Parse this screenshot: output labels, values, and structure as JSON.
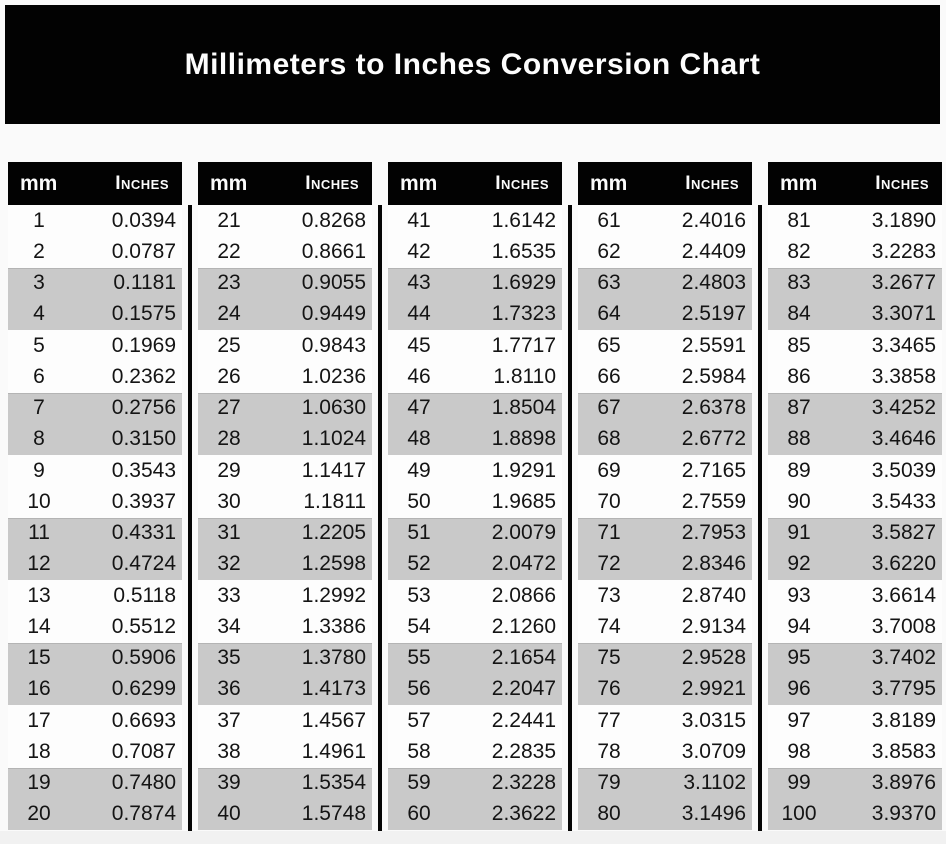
{
  "title": "Millimeters to Inches Conversion Chart",
  "chart_data": {
    "type": "table",
    "title": "Millimeters to Inches Conversion Chart",
    "columns": [
      "mm",
      "Inches"
    ],
    "layout": "five side-by-side two-column tables, rows shaded in alternating pairs (white pair / gray pair)",
    "stripe_color": "#c9c9c9",
    "header_bg": "#000000",
    "header_text_color": "#ffffff",
    "tables": [
      {
        "rows": [
          [
            "1",
            "0.0394"
          ],
          [
            "2",
            "0.0787"
          ],
          [
            "3",
            "0.1181"
          ],
          [
            "4",
            "0.1575"
          ],
          [
            "5",
            "0.1969"
          ],
          [
            "6",
            "0.2362"
          ],
          [
            "7",
            "0.2756"
          ],
          [
            "8",
            "0.3150"
          ],
          [
            "9",
            "0.3543"
          ],
          [
            "10",
            "0.3937"
          ],
          [
            "11",
            "0.4331"
          ],
          [
            "12",
            "0.4724"
          ],
          [
            "13",
            "0.5118"
          ],
          [
            "14",
            "0.5512"
          ],
          [
            "15",
            "0.5906"
          ],
          [
            "16",
            "0.6299"
          ],
          [
            "17",
            "0.6693"
          ],
          [
            "18",
            "0.7087"
          ],
          [
            "19",
            "0.7480"
          ],
          [
            "20",
            "0.7874"
          ]
        ]
      },
      {
        "rows": [
          [
            "21",
            "0.8268"
          ],
          [
            "22",
            "0.8661"
          ],
          [
            "23",
            "0.9055"
          ],
          [
            "24",
            "0.9449"
          ],
          [
            "25",
            "0.9843"
          ],
          [
            "26",
            "1.0236"
          ],
          [
            "27",
            "1.0630"
          ],
          [
            "28",
            "1.1024"
          ],
          [
            "29",
            "1.1417"
          ],
          [
            "30",
            "1.1811"
          ],
          [
            "31",
            "1.2205"
          ],
          [
            "32",
            "1.2598"
          ],
          [
            "33",
            "1.2992"
          ],
          [
            "34",
            "1.3386"
          ],
          [
            "35",
            "1.3780"
          ],
          [
            "36",
            "1.4173"
          ],
          [
            "37",
            "1.4567"
          ],
          [
            "38",
            "1.4961"
          ],
          [
            "39",
            "1.5354"
          ],
          [
            "40",
            "1.5748"
          ]
        ]
      },
      {
        "rows": [
          [
            "41",
            "1.6142"
          ],
          [
            "42",
            "1.6535"
          ],
          [
            "43",
            "1.6929"
          ],
          [
            "44",
            "1.7323"
          ],
          [
            "45",
            "1.7717"
          ],
          [
            "46",
            "1.8110"
          ],
          [
            "47",
            "1.8504"
          ],
          [
            "48",
            "1.8898"
          ],
          [
            "49",
            "1.9291"
          ],
          [
            "50",
            "1.9685"
          ],
          [
            "51",
            "2.0079"
          ],
          [
            "52",
            "2.0472"
          ],
          [
            "53",
            "2.0866"
          ],
          [
            "54",
            "2.1260"
          ],
          [
            "55",
            "2.1654"
          ],
          [
            "56",
            "2.2047"
          ],
          [
            "57",
            "2.2441"
          ],
          [
            "58",
            "2.2835"
          ],
          [
            "59",
            "2.3228"
          ],
          [
            "60",
            "2.3622"
          ]
        ]
      },
      {
        "rows": [
          [
            "61",
            "2.4016"
          ],
          [
            "62",
            "2.4409"
          ],
          [
            "63",
            "2.4803"
          ],
          [
            "64",
            "2.5197"
          ],
          [
            "65",
            "2.5591"
          ],
          [
            "66",
            "2.5984"
          ],
          [
            "67",
            "2.6378"
          ],
          [
            "68",
            "2.6772"
          ],
          [
            "69",
            "2.7165"
          ],
          [
            "70",
            "2.7559"
          ],
          [
            "71",
            "2.7953"
          ],
          [
            "72",
            "2.8346"
          ],
          [
            "73",
            "2.8740"
          ],
          [
            "74",
            "2.9134"
          ],
          [
            "75",
            "2.9528"
          ],
          [
            "76",
            "2.9921"
          ],
          [
            "77",
            "3.0315"
          ],
          [
            "78",
            "3.0709"
          ],
          [
            "79",
            "3.1102"
          ],
          [
            "80",
            "3.1496"
          ]
        ]
      },
      {
        "rows": [
          [
            "81",
            "3.1890"
          ],
          [
            "82",
            "3.2283"
          ],
          [
            "83",
            "3.2677"
          ],
          [
            "84",
            "3.3071"
          ],
          [
            "85",
            "3.3465"
          ],
          [
            "86",
            "3.3858"
          ],
          [
            "87",
            "3.4252"
          ],
          [
            "88",
            "3.4646"
          ],
          [
            "89",
            "3.5039"
          ],
          [
            "90",
            "3.5433"
          ],
          [
            "91",
            "3.5827"
          ],
          [
            "92",
            "3.6220"
          ],
          [
            "93",
            "3.6614"
          ],
          [
            "94",
            "3.7008"
          ],
          [
            "95",
            "3.7402"
          ],
          [
            "96",
            "3.7795"
          ],
          [
            "97",
            "3.8189"
          ],
          [
            "98",
            "3.8583"
          ],
          [
            "99",
            "3.8976"
          ],
          [
            "100",
            "3.9370"
          ]
        ]
      }
    ]
  }
}
